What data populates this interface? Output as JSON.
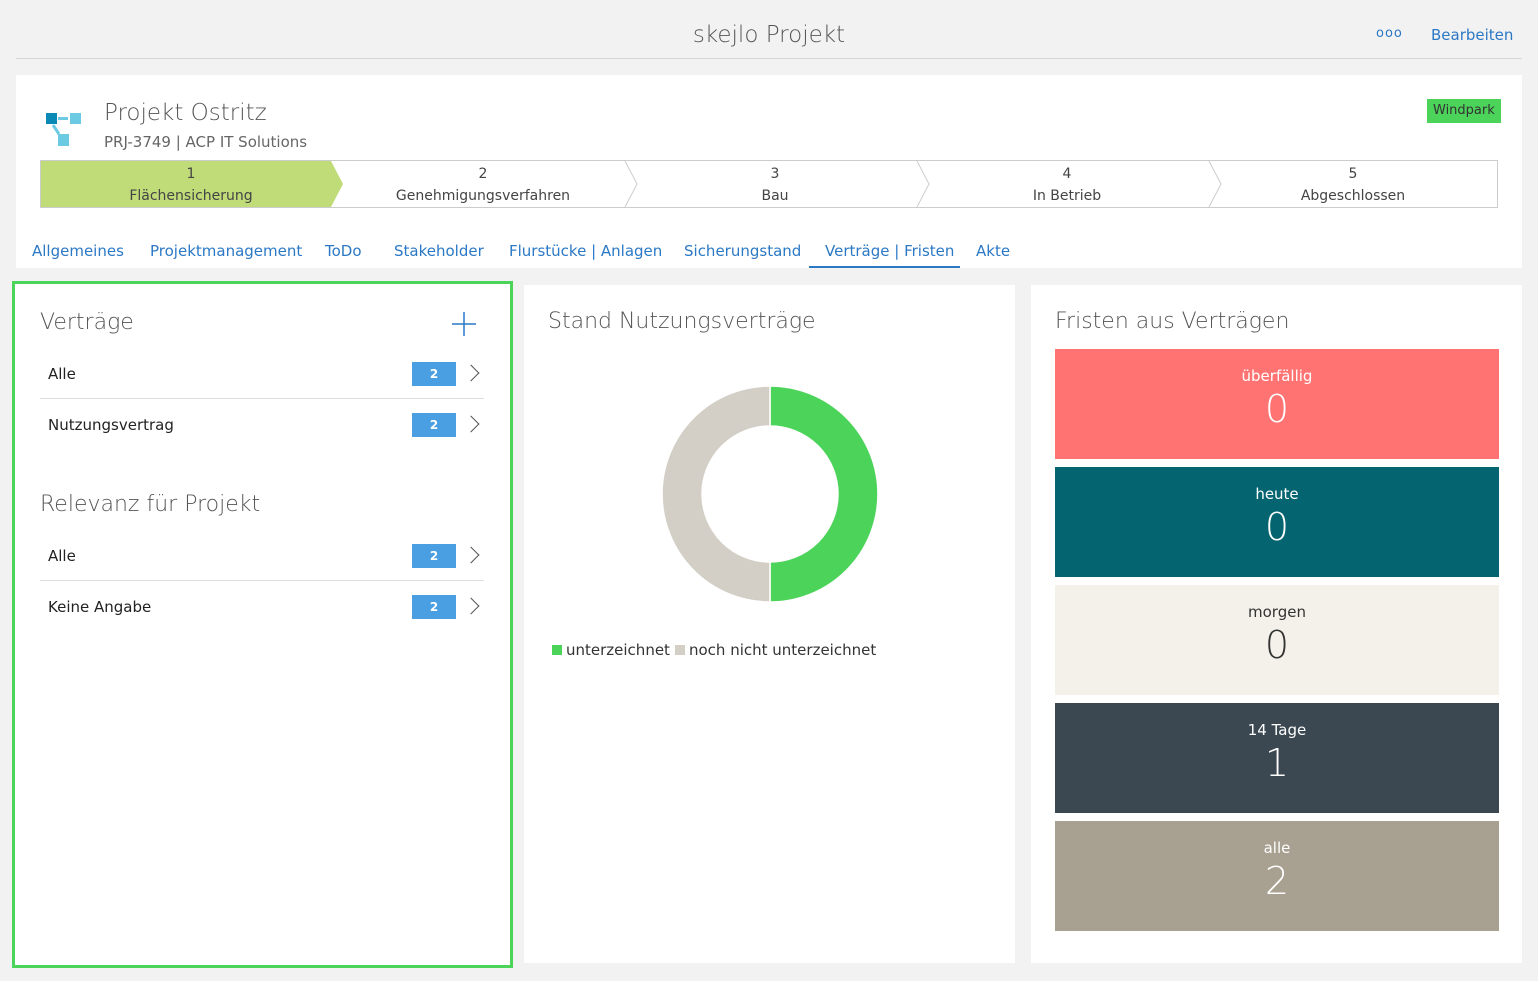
{
  "app": {
    "title": "skejlo Projekt",
    "more": "ooo",
    "edit": "Bearbeiten"
  },
  "project": {
    "name": "Projekt Ostritz",
    "subtitle": "PRJ-3749 | ACP IT Solutions",
    "badge": "Windpark",
    "icon": "project-structure-icon"
  },
  "steps": [
    {
      "num": "1",
      "label": "Flächensicherung",
      "active": true
    },
    {
      "num": "2",
      "label": "Genehmigungsverfahren"
    },
    {
      "num": "3",
      "label": "Bau"
    },
    {
      "num": "4",
      "label": "In Betrieb"
    },
    {
      "num": "5",
      "label": "Abgeschlossen"
    }
  ],
  "tabs": [
    {
      "label": "Allgemeines"
    },
    {
      "label": "Projektmanagement"
    },
    {
      "label": "ToDo"
    },
    {
      "label": "Stakeholder"
    },
    {
      "label": "Flurstücke | Anlagen"
    },
    {
      "label": "Sicherungstand"
    },
    {
      "label": "Verträge | Fristen",
      "active": true
    },
    {
      "label": "Akte"
    }
  ],
  "contracts": {
    "title": "Verträge",
    "items": [
      {
        "label": "Alle",
        "count": "2"
      },
      {
        "label": "Nutzungsvertrag",
        "count": "2"
      }
    ]
  },
  "relevance": {
    "title": "Relevanz für Projekt",
    "items": [
      {
        "label": "Alle",
        "count": "2"
      },
      {
        "label": "Keine Angabe",
        "count": "2"
      }
    ]
  },
  "chart_data": {
    "type": "pie",
    "donut": true,
    "title": "Stand Nutzungsverträge",
    "series": [
      {
        "name": "unterzeichnet",
        "value": 1,
        "color": "#4cd35a"
      },
      {
        "name": "noch nicht unterzeichnet",
        "value": 1,
        "color": "#d3cec6"
      }
    ],
    "legend": "bottom-left"
  },
  "deadlines": {
    "title": "Fristen aus Verträgen",
    "tiles": [
      {
        "label": "überfällig",
        "value": "0",
        "color": "#ff7373"
      },
      {
        "label": "heute",
        "value": "0",
        "color": "#046571"
      },
      {
        "label": "morgen",
        "value": "0",
        "color": "#f3f1ea"
      },
      {
        "label": "14 Tage",
        "value": "1",
        "color": "#3b4851"
      },
      {
        "label": "alle",
        "value": "2",
        "color": "#a8a090"
      }
    ]
  }
}
